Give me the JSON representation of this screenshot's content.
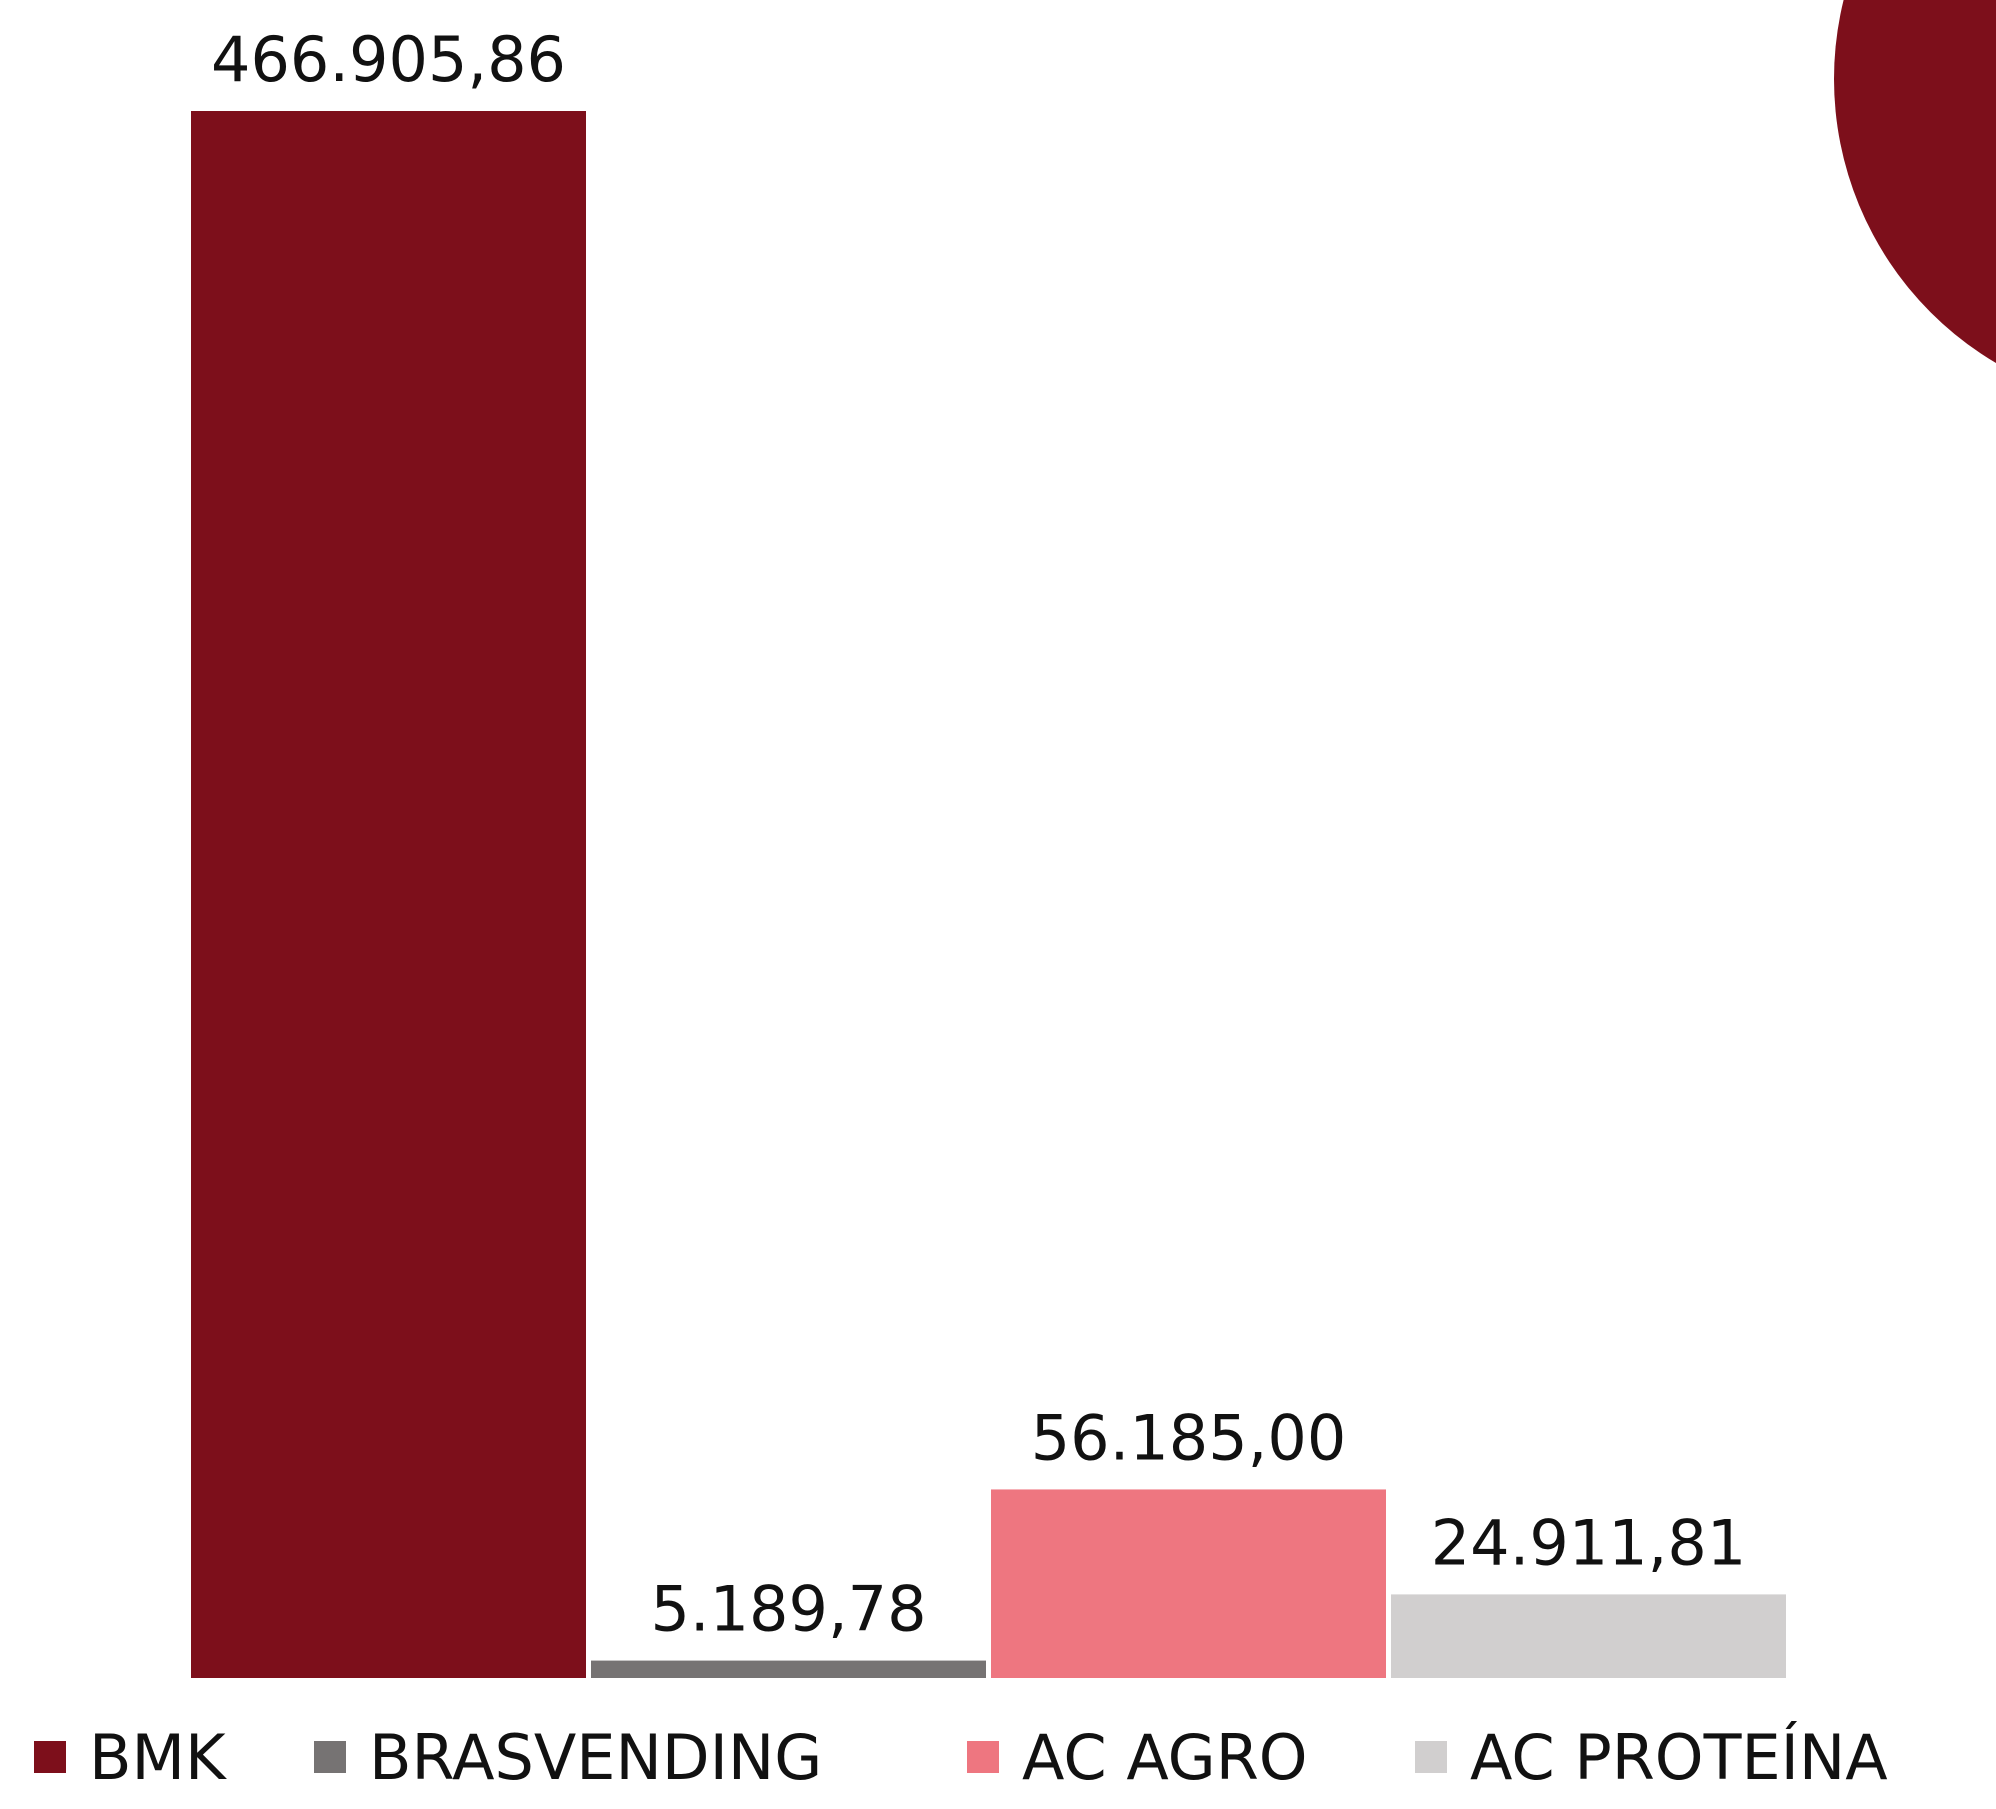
{
  "chart_data": {
    "type": "bar",
    "categories": [
      "BMK",
      "BRASVENDING",
      "AC AGRO",
      "AC PROTEÍNA"
    ],
    "values": [
      466905.86,
      5189.78,
      56185.0,
      24911.81
    ],
    "value_labels": [
      "466.905,86",
      "5.189,78",
      "56.185,00",
      "24.911,81"
    ],
    "colors": [
      "#7d0f1b",
      "#767373",
      "#ee7680",
      "#d1cfcf"
    ],
    "legend": "bottom"
  }
}
